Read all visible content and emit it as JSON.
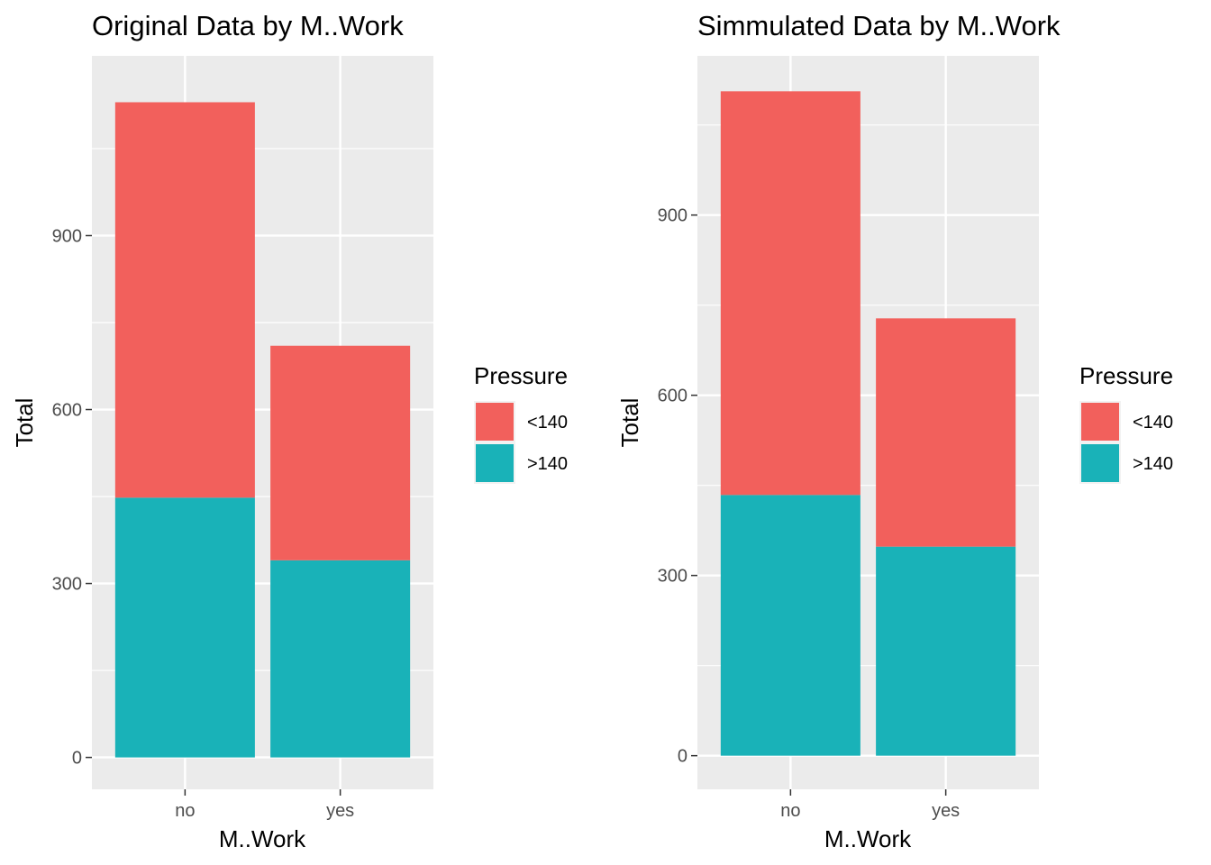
{
  "chart_data": [
    {
      "type": "bar",
      "stacked": true,
      "title": "Original Data by M..Work",
      "xlabel": "M..Work",
      "ylabel": "Total",
      "categories": [
        "no",
        "yes"
      ],
      "yticks": [
        "0",
        "300",
        "600",
        "900"
      ],
      "ylim": [
        -55,
        1210
      ],
      "grid": true,
      "legend": {
        "title": "Pressure",
        "placement": "right"
      },
      "series": [
        {
          "name": ">140",
          "color": "#19B2B8",
          "values": [
            448,
            340
          ]
        },
        {
          "name": "<140",
          "color": "#F2605C",
          "values": [
            682,
            370
          ]
        }
      ]
    },
    {
      "type": "bar",
      "stacked": true,
      "title": "Simmulated Data by M..Work",
      "xlabel": "M..Work",
      "ylabel": "Total",
      "categories": [
        "no",
        "yes"
      ],
      "yticks": [
        "0",
        "300",
        "600",
        "900"
      ],
      "ylim": [
        -56,
        1165
      ],
      "grid": true,
      "legend": {
        "title": "Pressure",
        "placement": "right"
      },
      "series": [
        {
          "name": ">140",
          "color": "#19B2B8",
          "values": [
            434,
            348
          ]
        },
        {
          "name": "<140",
          "color": "#F2605C",
          "values": [
            672,
            380
          ]
        }
      ]
    }
  ]
}
